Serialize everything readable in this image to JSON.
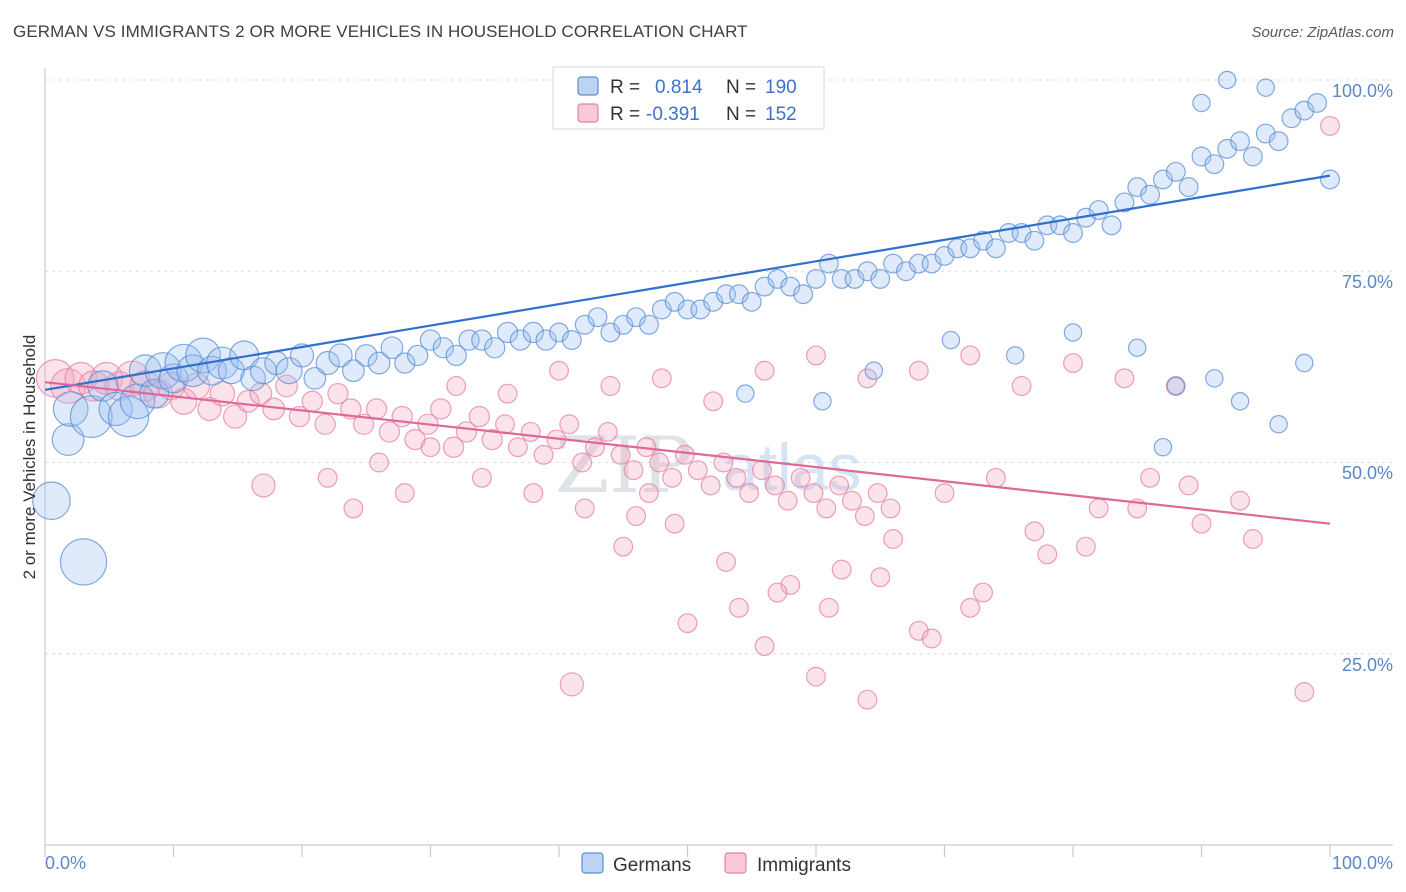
{
  "header": {
    "title": "GERMAN VS IMMIGRANTS 2 OR MORE VEHICLES IN HOUSEHOLD CORRELATION CHART",
    "source": "Source: ZipAtlas.com"
  },
  "watermark": {
    "zip": "ZIP",
    "atlas": "atlas"
  },
  "legend_top": {
    "rows": [
      {
        "r_label": "R =",
        "r_value": "0.814",
        "n_label": "N =",
        "n_value": "190",
        "color": "#5b8fd6"
      },
      {
        "r_label": "R =",
        "r_value": "-0.391",
        "n_label": "N =",
        "n_value": "152",
        "color": "#e87fa3"
      }
    ]
  },
  "legend_bottom": {
    "items": [
      "Germans",
      "Immigrants"
    ]
  },
  "chart_data": {
    "type": "scatter",
    "title": "GERMAN VS IMMIGRANTS 2 OR MORE VEHICLES IN HOUSEHOLD CORRELATION CHART",
    "xlabel": "",
    "ylabel": "2 or more Vehicles in Household",
    "xlim": [
      0,
      100
    ],
    "ylim": [
      0,
      100
    ],
    "x_tick_labels": [
      "0.0%",
      "100.0%"
    ],
    "y_tick_labels": [
      "25.0%",
      "50.0%",
      "75.0%",
      "100.0%"
    ],
    "y_ticks": [
      25,
      50,
      75,
      100
    ],
    "colors": {
      "germans": "#5b8fd6",
      "immigrants": "#e87fa3",
      "germans_line": "#2f6fd0",
      "immigrants_line": "#e0679a"
    },
    "series": [
      {
        "name": "Germans",
        "r": 0.814,
        "n": 190,
        "trend": [
          [
            0,
            59.5
          ],
          [
            100,
            87.5
          ]
        ],
        "points": [
          [
            0.5,
            45,
            2.6
          ],
          [
            1.8,
            53,
            2.2
          ],
          [
            3,
            37,
            3.2
          ],
          [
            2,
            57,
            2.4
          ],
          [
            3.6,
            56,
            2.9
          ],
          [
            4.5,
            60,
            2.1
          ],
          [
            5.5,
            57,
            2.3
          ],
          [
            6.5,
            56,
            2.8
          ],
          [
            7.2,
            58,
            2.4
          ],
          [
            7.8,
            62,
            2.2
          ],
          [
            8.5,
            59,
            2.0
          ],
          [
            9.2,
            62,
            2.5
          ],
          [
            10,
            61,
            2.0
          ],
          [
            10.8,
            63,
            2.6
          ],
          [
            11.5,
            62,
            2.2
          ],
          [
            12.3,
            64,
            2.4
          ],
          [
            13,
            62,
            2.0
          ],
          [
            13.8,
            63,
            2.2
          ],
          [
            14.5,
            62,
            1.8
          ],
          [
            15.5,
            64,
            2.0
          ],
          [
            16.2,
            61,
            1.7
          ],
          [
            17,
            62,
            1.8
          ],
          [
            18,
            63,
            1.6
          ],
          [
            19,
            62,
            1.8
          ],
          [
            20,
            64,
            1.6
          ],
          [
            21,
            61,
            1.5
          ],
          [
            22,
            63,
            1.6
          ],
          [
            23,
            64,
            1.6
          ],
          [
            24,
            62,
            1.5
          ],
          [
            25,
            64,
            1.5
          ],
          [
            26,
            63,
            1.5
          ],
          [
            27,
            65,
            1.5
          ],
          [
            28,
            63,
            1.4
          ],
          [
            29,
            64,
            1.4
          ],
          [
            30,
            66,
            1.4
          ],
          [
            31,
            65,
            1.4
          ],
          [
            32,
            64,
            1.4
          ],
          [
            33,
            66,
            1.4
          ],
          [
            34,
            66,
            1.4
          ],
          [
            35,
            65,
            1.4
          ],
          [
            36,
            67,
            1.4
          ],
          [
            37,
            66,
            1.4
          ],
          [
            38,
            67,
            1.4
          ],
          [
            39,
            66,
            1.4
          ],
          [
            40,
            67,
            1.3
          ],
          [
            41,
            66,
            1.3
          ],
          [
            42,
            68,
            1.3
          ],
          [
            43,
            69,
            1.3
          ],
          [
            44,
            67,
            1.3
          ],
          [
            45,
            68,
            1.3
          ],
          [
            46,
            69,
            1.3
          ],
          [
            47,
            68,
            1.3
          ],
          [
            48,
            70,
            1.3
          ],
          [
            49,
            71,
            1.3
          ],
          [
            50,
            70,
            1.3
          ],
          [
            51,
            70,
            1.3
          ],
          [
            52,
            71,
            1.3
          ],
          [
            53,
            72,
            1.3
          ],
          [
            54,
            72,
            1.3
          ],
          [
            55,
            71,
            1.3
          ],
          [
            56,
            73,
            1.3
          ],
          [
            57,
            74,
            1.3
          ],
          [
            58,
            73,
            1.3
          ],
          [
            59,
            72,
            1.3
          ],
          [
            60,
            74,
            1.3
          ],
          [
            61,
            76,
            1.3
          ],
          [
            62,
            74,
            1.3
          ],
          [
            63,
            74,
            1.3
          ],
          [
            64,
            75,
            1.3
          ],
          [
            65,
            74,
            1.3
          ],
          [
            66,
            76,
            1.3
          ],
          [
            67,
            75,
            1.3
          ],
          [
            68,
            76,
            1.3
          ],
          [
            69,
            76,
            1.3
          ],
          [
            70,
            77,
            1.3
          ],
          [
            71,
            78,
            1.3
          ],
          [
            72,
            78,
            1.3
          ],
          [
            73,
            79,
            1.3
          ],
          [
            74,
            78,
            1.3
          ],
          [
            75,
            80,
            1.3
          ],
          [
            76,
            80,
            1.3
          ],
          [
            77,
            79,
            1.3
          ],
          [
            78,
            81,
            1.3
          ],
          [
            79,
            81,
            1.3
          ],
          [
            80,
            80,
            1.3
          ],
          [
            81,
            82,
            1.3
          ],
          [
            82,
            83,
            1.3
          ],
          [
            83,
            81,
            1.3
          ],
          [
            84,
            84,
            1.3
          ],
          [
            85,
            86,
            1.3
          ],
          [
            86,
            85,
            1.3
          ],
          [
            87,
            87,
            1.3
          ],
          [
            88,
            88,
            1.3
          ],
          [
            89,
            86,
            1.3
          ],
          [
            90,
            90,
            1.3
          ],
          [
            91,
            89,
            1.3
          ],
          [
            92,
            91,
            1.3
          ],
          [
            93,
            92,
            1.3
          ],
          [
            94,
            90,
            1.3
          ],
          [
            95,
            93,
            1.3
          ],
          [
            96,
            92,
            1.3
          ],
          [
            97,
            95,
            1.3
          ],
          [
            98,
            96,
            1.3
          ],
          [
            99,
            97,
            1.3
          ],
          [
            100,
            87,
            1.3
          ],
          [
            54.5,
            59,
            1.2
          ],
          [
            60.5,
            58,
            1.2
          ],
          [
            64.5,
            62,
            1.2
          ],
          [
            70.5,
            66,
            1.2
          ],
          [
            75.5,
            64,
            1.2
          ],
          [
            80,
            67,
            1.2
          ],
          [
            85,
            65,
            1.2
          ],
          [
            88,
            60,
            1.2
          ],
          [
            91,
            61,
            1.2
          ],
          [
            93,
            58,
            1.2
          ],
          [
            87,
            52,
            1.2
          ],
          [
            96,
            55,
            1.2
          ],
          [
            98,
            63,
            1.2
          ],
          [
            90,
            97,
            1.2
          ],
          [
            95,
            99,
            1.2
          ],
          [
            92,
            100,
            1.2
          ]
        ]
      },
      {
        "name": "Immigrants",
        "r": -0.391,
        "n": 152,
        "trend": [
          [
            0,
            60.5
          ],
          [
            100,
            42
          ]
        ],
        "points": [
          [
            0.8,
            61,
            2.6
          ],
          [
            1.8,
            60,
            2.4
          ],
          [
            2.8,
            61,
            2.2
          ],
          [
            3.8,
            60,
            2.1
          ],
          [
            4.8,
            61,
            2.2
          ],
          [
            5.8,
            60,
            2.0
          ],
          [
            6.8,
            61,
            2.4
          ],
          [
            7.8,
            60,
            2.1
          ],
          [
            8.8,
            59,
            2.0
          ],
          [
            9.8,
            60,
            1.9
          ],
          [
            10.8,
            58,
            1.8
          ],
          [
            11.8,
            60,
            1.8
          ],
          [
            12.8,
            57,
            1.6
          ],
          [
            13.8,
            59,
            1.7
          ],
          [
            14.8,
            56,
            1.6
          ],
          [
            15.8,
            58,
            1.5
          ],
          [
            16.8,
            59,
            1.5
          ],
          [
            17.8,
            57,
            1.5
          ],
          [
            18.8,
            60,
            1.5
          ],
          [
            19.8,
            56,
            1.4
          ],
          [
            20.8,
            58,
            1.4
          ],
          [
            21.8,
            55,
            1.4
          ],
          [
            22.8,
            59,
            1.4
          ],
          [
            23.8,
            57,
            1.4
          ],
          [
            24.8,
            55,
            1.4
          ],
          [
            25.8,
            57,
            1.4
          ],
          [
            26.8,
            54,
            1.4
          ],
          [
            27.8,
            56,
            1.4
          ],
          [
            28.8,
            53,
            1.4
          ],
          [
            29.8,
            55,
            1.4
          ],
          [
            30.8,
            57,
            1.4
          ],
          [
            31.8,
            52,
            1.4
          ],
          [
            32.8,
            54,
            1.4
          ],
          [
            33.8,
            56,
            1.4
          ],
          [
            34.8,
            53,
            1.4
          ],
          [
            35.8,
            55,
            1.3
          ],
          [
            36.8,
            52,
            1.3
          ],
          [
            37.8,
            54,
            1.3
          ],
          [
            38.8,
            51,
            1.3
          ],
          [
            39.8,
            53,
            1.3
          ],
          [
            40.8,
            55,
            1.3
          ],
          [
            41.8,
            50,
            1.3
          ],
          [
            42.8,
            52,
            1.3
          ],
          [
            43.8,
            54,
            1.3
          ],
          [
            44.8,
            51,
            1.3
          ],
          [
            45.8,
            49,
            1.3
          ],
          [
            46.8,
            52,
            1.3
          ],
          [
            47.8,
            50,
            1.3
          ],
          [
            48.8,
            48,
            1.3
          ],
          [
            49.8,
            51,
            1.3
          ],
          [
            50.8,
            49,
            1.3
          ],
          [
            51.8,
            47,
            1.3
          ],
          [
            52.8,
            50,
            1.3
          ],
          [
            53.8,
            48,
            1.3
          ],
          [
            54.8,
            46,
            1.3
          ],
          [
            55.8,
            49,
            1.3
          ],
          [
            56.8,
            47,
            1.3
          ],
          [
            57.8,
            45,
            1.3
          ],
          [
            58.8,
            48,
            1.3
          ],
          [
            59.8,
            46,
            1.3
          ],
          [
            60.8,
            44,
            1.3
          ],
          [
            61.8,
            47,
            1.3
          ],
          [
            62.8,
            45,
            1.3
          ],
          [
            63.8,
            43,
            1.3
          ],
          [
            64.8,
            46,
            1.3
          ],
          [
            65.8,
            44,
            1.3
          ],
          [
            17,
            47,
            1.6
          ],
          [
            32,
            60,
            1.3
          ],
          [
            36,
            59,
            1.3
          ],
          [
            40,
            62,
            1.3
          ],
          [
            44,
            60,
            1.3
          ],
          [
            48,
            61,
            1.3
          ],
          [
            52,
            58,
            1.3
          ],
          [
            56,
            62,
            1.3
          ],
          [
            60,
            64,
            1.3
          ],
          [
            64,
            61,
            1.3
          ],
          [
            68,
            62,
            1.3
          ],
          [
            72,
            64,
            1.3
          ],
          [
            76,
            60,
            1.3
          ],
          [
            80,
            63,
            1.3
          ],
          [
            84,
            61,
            1.3
          ],
          [
            88,
            60,
            1.3
          ],
          [
            74,
            48,
            1.3
          ],
          [
            70,
            46,
            1.3
          ],
          [
            66,
            40,
            1.3
          ],
          [
            62,
            36,
            1.3
          ],
          [
            58,
            34,
            1.3
          ],
          [
            54,
            31,
            1.3
          ],
          [
            50,
            29,
            1.3
          ],
          [
            56,
            26,
            1.3
          ],
          [
            60,
            22,
            1.3
          ],
          [
            64,
            19,
            1.3
          ],
          [
            68,
            28,
            1.3
          ],
          [
            72,
            31,
            1.3
          ],
          [
            78,
            38,
            1.3
          ],
          [
            82,
            44,
            1.3
          ],
          [
            86,
            48,
            1.3
          ],
          [
            90,
            42,
            1.3
          ],
          [
            94,
            40,
            1.3
          ],
          [
            98,
            20,
            1.3
          ],
          [
            100,
            94,
            1.3
          ],
          [
            41,
            21,
            1.6
          ],
          [
            47,
            46,
            1.3
          ],
          [
            45,
            39,
            1.3
          ],
          [
            49,
            42,
            1.3
          ],
          [
            53,
            37,
            1.3
          ],
          [
            57,
            33,
            1.3
          ],
          [
            61,
            31,
            1.3
          ],
          [
            65,
            35,
            1.3
          ],
          [
            69,
            27,
            1.3
          ],
          [
            73,
            33,
            1.3
          ],
          [
            77,
            41,
            1.3
          ],
          [
            81,
            39,
            1.3
          ],
          [
            85,
            44,
            1.3
          ],
          [
            89,
            47,
            1.3
          ],
          [
            93,
            45,
            1.3
          ],
          [
            34,
            48,
            1.3
          ],
          [
            38,
            46,
            1.3
          ],
          [
            42,
            44,
            1.3
          ],
          [
            46,
            43,
            1.3
          ],
          [
            26,
            50,
            1.3
          ],
          [
            30,
            52,
            1.3
          ],
          [
            22,
            48,
            1.3
          ],
          [
            28,
            46,
            1.3
          ],
          [
            24,
            44,
            1.3
          ]
        ]
      }
    ]
  }
}
